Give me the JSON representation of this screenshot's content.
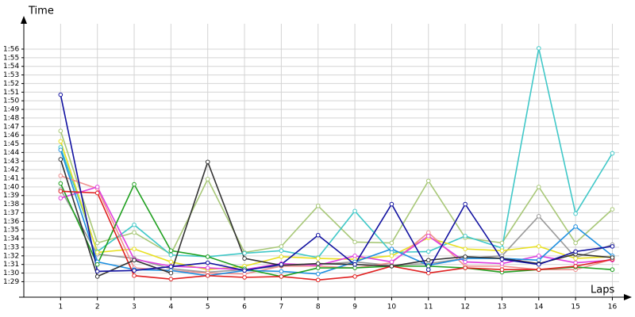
{
  "chart_data": {
    "type": "line",
    "y_label": "Time",
    "x_label": "Laps",
    "x": [
      1,
      2,
      3,
      4,
      5,
      6,
      7,
      8,
      9,
      10,
      11,
      12,
      13,
      14,
      15,
      16
    ],
    "xlim": [
      0,
      16.4
    ],
    "xticks": [
      1,
      2,
      3,
      4,
      5,
      6,
      7,
      8,
      9,
      10,
      11,
      12,
      13,
      14,
      15,
      16
    ],
    "ylim": [
      87.2,
      119.4
    ],
    "yticks": [
      {
        "value": 89,
        "label": "1:29"
      },
      {
        "value": 90,
        "label": "1:30"
      },
      {
        "value": 91,
        "label": "1:31"
      },
      {
        "value": 92,
        "label": "1:32"
      },
      {
        "value": 93,
        "label": "1:33"
      },
      {
        "value": 94,
        "label": "1:34"
      },
      {
        "value": 95,
        "label": "1:35"
      },
      {
        "value": 96,
        "label": "1:36"
      },
      {
        "value": 97,
        "label": "1:37"
      },
      {
        "value": 98,
        "label": "1:38"
      },
      {
        "value": 99,
        "label": "1:39"
      },
      {
        "value": 100,
        "label": "1:40"
      },
      {
        "value": 101,
        "label": "1:41"
      },
      {
        "value": 102,
        "label": "1:42"
      },
      {
        "value": 103,
        "label": "1:43"
      },
      {
        "value": 104,
        "label": "1:44"
      },
      {
        "value": 105,
        "label": "1:45"
      },
      {
        "value": 106,
        "label": "1:46"
      },
      {
        "value": 107,
        "label": "1:47"
      },
      {
        "value": 108,
        "label": "1:48"
      },
      {
        "value": 109,
        "label": "1:49"
      },
      {
        "value": 110,
        "label": "1:50"
      },
      {
        "value": 111,
        "label": "1:51"
      },
      {
        "value": 112,
        "label": "1:52"
      },
      {
        "value": 113,
        "label": "1:53"
      },
      {
        "value": 114,
        "label": "1:54"
      },
      {
        "value": 115,
        "label": "1:55"
      },
      {
        "value": 116,
        "label": "1:56"
      }
    ],
    "grid": true,
    "series": [
      {
        "color": "#a8c878",
        "values": [
          106.5,
          93.5,
          94.7,
          92.2,
          100.9,
          92.4,
          93.1,
          97.8,
          93.6,
          93.5,
          100.7,
          94.1,
          93.5,
          100,
          93.5,
          97.4
        ]
      },
      {
        "color": "#40c8c8",
        "values": [
          104.6,
          92.5,
          95.6,
          92.1,
          91.9,
          92.3,
          92.6,
          91.8,
          97.2,
          92.4,
          92.5,
          94.3,
          92.9,
          116.1,
          96.9,
          103.9
        ]
      },
      {
        "color": "#999999",
        "values": [
          99.7,
          92.2,
          91.7,
          90.5,
          90.1,
          90.4,
          90.8,
          91,
          91.3,
          90.9,
          91.1,
          91.7,
          92,
          96.6,
          91.8,
          93.3
        ]
      },
      {
        "color": "#e8e020",
        "values": [
          105.3,
          92.4,
          92.8,
          91.3,
          90.4,
          90.8,
          91.9,
          91.7,
          91.6,
          92,
          94.1,
          92.8,
          92.6,
          93.1,
          91.7,
          91.9
        ]
      },
      {
        "color": "#f09090",
        "values": [
          101.3,
          99.8,
          90.6,
          90.3,
          90,
          89.9,
          90.8,
          90.8,
          90.6,
          91.2,
          94.7,
          90.8,
          90.8,
          90.4,
          90.4,
          91.6
        ]
      },
      {
        "color": "#e040e0",
        "values": [
          98.7,
          100,
          91.6,
          90.8,
          90.6,
          90.4,
          91.1,
          90.9,
          92,
          91.3,
          94.3,
          91.3,
          91.1,
          92,
          91.2,
          91.5
        ]
      },
      {
        "color": "#2090e0",
        "values": [
          104.3,
          91.3,
          90.4,
          90.3,
          89.7,
          90.3,
          90.2,
          89.9,
          91.3,
          92.8,
          90.9,
          91.7,
          91.7,
          91.5,
          95.4,
          92
        ]
      },
      {
        "color": "#20a020",
        "values": [
          100.4,
          91,
          100.3,
          92.6,
          91.9,
          90.5,
          89.6,
          90.6,
          90.6,
          90.8,
          90.8,
          90.6,
          90.1,
          90.4,
          90.7,
          90.4
        ]
      },
      {
        "color": "#e02020",
        "values": [
          99.5,
          99.3,
          89.7,
          89.3,
          89.7,
          89.5,
          89.6,
          89.2,
          89.6,
          90.8,
          90,
          90.6,
          90.4,
          90.4,
          90.8,
          91.6
        ]
      },
      {
        "color": "#333333",
        "values": [
          103.2,
          89.6,
          91.5,
          90,
          102.9,
          91.7,
          90.9,
          91.1,
          91,
          90.8,
          91.5,
          91.9,
          91.7,
          91.1,
          92.2,
          91.8
        ]
      },
      {
        "color": "#1010a0",
        "values": [
          110.7,
          90.2,
          90.3,
          90.75,
          91.2,
          90.3,
          91,
          94.4,
          91,
          98,
          90.4,
          98,
          91.6,
          91,
          92.5,
          93.1
        ]
      }
    ]
  }
}
